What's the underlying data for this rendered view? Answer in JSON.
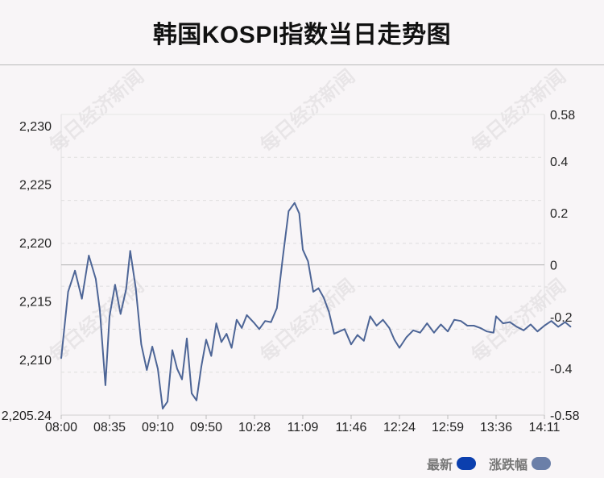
{
  "title": "韩国KOSPI指数当日走势图",
  "watermark": "每日经济新闻",
  "legend": {
    "latest_label": "最新",
    "change_label": "涨跌幅",
    "latest_color": "#0b3fae",
    "change_color": "#6b7fa8"
  },
  "chart_data": {
    "type": "line",
    "title": "韩国KOSPI指数当日走势图",
    "xlabel": "",
    "ylabel": "",
    "x_ticks": [
      "08:00",
      "08:35",
      "09:10",
      "09:50",
      "10:28",
      "11:09",
      "11:46",
      "12:24",
      "12:59",
      "13:36",
      "14:11"
    ],
    "y_left_ticks": [
      "2,205.24",
      "2,210",
      "2,215",
      "2,220",
      "2,225",
      "2,230"
    ],
    "y_left_range": [
      2205.24,
      2230.97
    ],
    "y_right_ticks": [
      "-0.58",
      "-0.4",
      "-0.2",
      "0",
      "0.2",
      "0.4",
      "0.58"
    ],
    "y_right_range": [
      -0.58,
      0.58
    ],
    "baseline": 2218.1,
    "grid": true,
    "legend_position": "bottom-right",
    "line_color": "#4d6596",
    "series": [
      {
        "name": "最新",
        "x": [
          "08:00",
          "08:05",
          "08:10",
          "08:15",
          "08:20",
          "08:25",
          "08:28",
          "08:32",
          "08:35",
          "08:39",
          "08:43",
          "08:47",
          "08:50",
          "08:54",
          "08:58",
          "09:02",
          "09:06",
          "09:10",
          "09:14",
          "09:18",
          "09:22",
          "09:26",
          "09:30",
          "09:34",
          "09:38",
          "09:42",
          "09:46",
          "09:50",
          "09:54",
          "09:58",
          "10:02",
          "10:06",
          "10:10",
          "10:14",
          "10:18",
          "10:22",
          "10:28",
          "10:32",
          "10:37",
          "10:42",
          "10:47",
          "10:52",
          "10:57",
          "11:02",
          "11:06",
          "11:09",
          "11:13",
          "11:17",
          "11:21",
          "11:25",
          "11:29",
          "11:33",
          "11:37",
          "11:41",
          "11:46",
          "11:51",
          "11:56",
          "12:01",
          "12:06",
          "12:11",
          "12:16",
          "12:20",
          "12:24",
          "12:29",
          "12:34",
          "12:39",
          "12:44",
          "12:49",
          "12:54",
          "12:59",
          "13:04",
          "13:09",
          "13:14",
          "13:19",
          "13:24",
          "13:29",
          "13:34",
          "13:36",
          "13:41",
          "13:46",
          "13:51",
          "13:56",
          "14:01",
          "14:06",
          "14:11",
          "14:16",
          "14:21",
          "14:26",
          "14:30"
        ],
        "values": [
          2210.1,
          2215.8,
          2217.6,
          2215.2,
          2218.9,
          2216.9,
          2214.2,
          2207.8,
          2213.7,
          2216.4,
          2213.9,
          2216.0,
          2219.3,
          2216.1,
          2211.3,
          2209.1,
          2211.1,
          2209.2,
          2205.8,
          2206.4,
          2210.8,
          2209.2,
          2208.3,
          2211.8,
          2207.1,
          2206.5,
          2209.4,
          2211.7,
          2210.3,
          2213.1,
          2211.5,
          2212.2,
          2211.0,
          2213.4,
          2212.7,
          2213.8,
          2213.1,
          2212.6,
          2213.3,
          2213.2,
          2214.4,
          2218.7,
          2222.7,
          2223.4,
          2222.5,
          2219.4,
          2218.4,
          2215.8,
          2216.1,
          2215.3,
          2214.1,
          2212.2,
          2212.4,
          2212.6,
          2211.3,
          2212.1,
          2211.6,
          2213.7,
          2212.9,
          2213.4,
          2212.7,
          2211.7,
          2211.0,
          2211.9,
          2212.5,
          2212.3,
          2213.1,
          2212.3,
          2213.0,
          2212.4,
          2213.4,
          2213.3,
          2212.9,
          2212.9,
          2212.7,
          2212.4,
          2212.3,
          2213.7,
          2213.1,
          2213.2,
          2212.8,
          2212.5,
          2213.0,
          2212.4,
          2212.9,
          2213.3,
          2212.8,
          2213.2,
          2212.8
        ]
      }
    ]
  }
}
